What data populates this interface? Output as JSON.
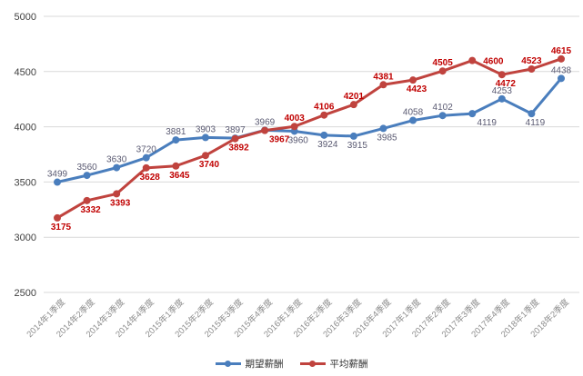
{
  "chart_data": {
    "type": "line",
    "title": "",
    "xlabel": "",
    "ylabel": "",
    "ylim": [
      2500,
      5000
    ],
    "yticks": [
      2500,
      3000,
      3500,
      4000,
      4500,
      5000
    ],
    "grid": "horizontal",
    "legend_position": "bottom",
    "categories": [
      "2014年1季度",
      "2014年2季度",
      "2014年3季度",
      "2014年4季度",
      "2015年1季度",
      "2015年2季度",
      "2015年3季度",
      "2015年4季度",
      "2016年1季度",
      "2016年2季度",
      "2016年3季度",
      "2016年4季度",
      "2017年1季度",
      "2017年2季度",
      "2017年3季度",
      "2017年4季度",
      "2018年1季度",
      "2018年2季度"
    ],
    "series": [
      {
        "name": "期望薪酬",
        "color": "#4A7EBD",
        "label_color": "#5A5A72",
        "label_bold": false,
        "values": [
          3499,
          3560,
          3630,
          3720,
          3881,
          3903,
          3897,
          3969,
          3960,
          3924,
          3915,
          3985,
          4058,
          4102,
          4119,
          4253,
          4119,
          4438
        ],
        "label_positions": [
          "above",
          "above",
          "above",
          "above",
          "above",
          "above",
          "above",
          "above",
          "below",
          "below",
          "below",
          "below",
          "above",
          "above",
          "below-right",
          "above",
          "below",
          "above"
        ]
      },
      {
        "name": "平均薪酬",
        "color": "#C0433E",
        "label_color": "#C00000",
        "label_bold": true,
        "values": [
          3175,
          3332,
          3393,
          3628,
          3645,
          3740,
          3892,
          3967,
          4003,
          4106,
          4201,
          4381,
          4423,
          4505,
          4600,
          4472,
          4523,
          4615
        ],
        "label_positions": [
          "below",
          "below",
          "below",
          "below",
          "below",
          "below",
          "below",
          "below-right",
          "above",
          "above",
          "above",
          "above",
          "below",
          "above",
          "right",
          "below",
          "above",
          "above"
        ]
      }
    ],
    "colors": {
      "gridline": "#D9D9D9",
      "y_tick_text": "#404040",
      "x_tick_text": "#8C8C8C",
      "legend_text": "#333333",
      "background": "#FFFFFF"
    }
  }
}
